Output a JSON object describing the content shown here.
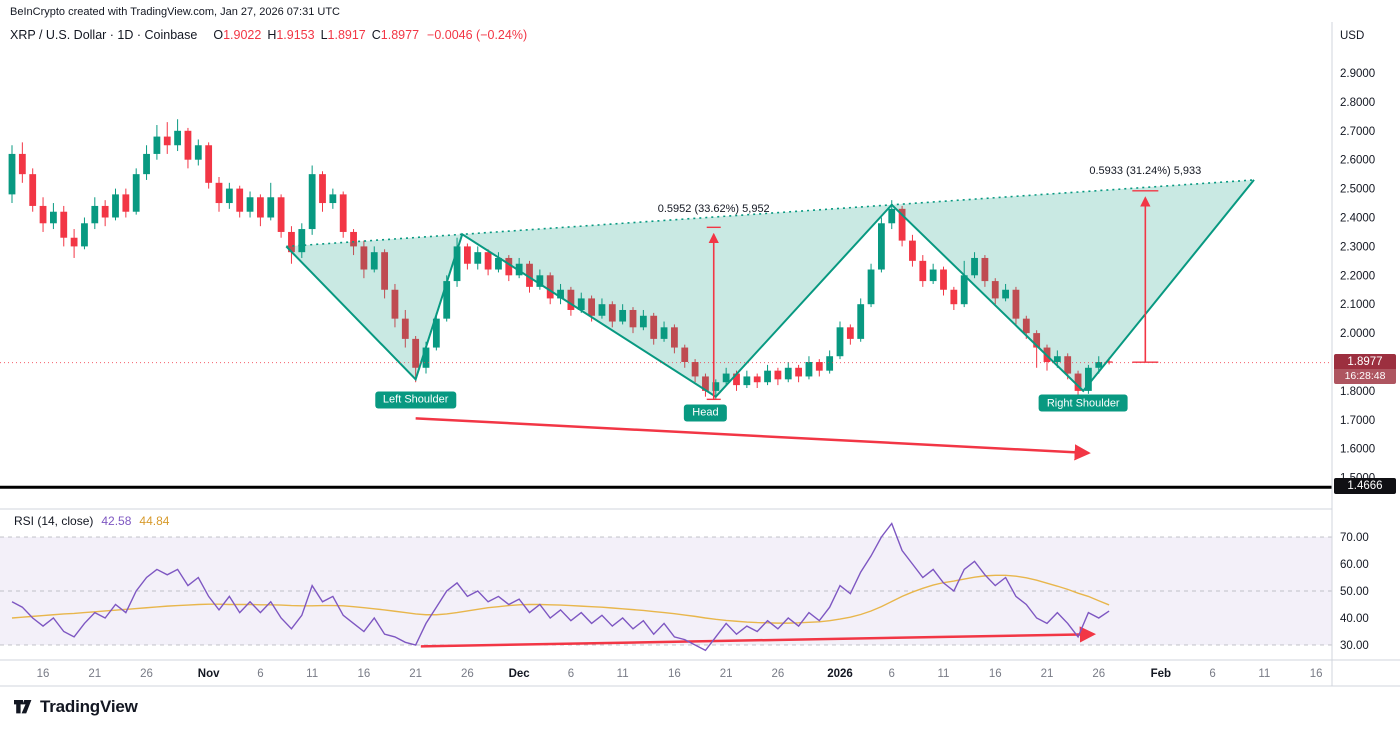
{
  "meta": {
    "attribution": "BeInCrypto created with TradingView.com, Jan 27, 2026 07:31 UTC",
    "currency": "USD"
  },
  "legend": {
    "symbol": "XRP / U.S. Dollar · 1D · Coinbase",
    "o_label": "O",
    "o_value": "1.9022",
    "h_label": "H",
    "h_value": "1.9153",
    "l_label": "L",
    "l_value": "1.8917",
    "c_label": "C",
    "c_value": "1.8977",
    "change": "−0.0046 (−0.24%)"
  },
  "rsi_legend": {
    "title": "RSI (14, close)",
    "value": "42.58",
    "ma_value": "44.84"
  },
  "price_badge": {
    "price": "1.8977",
    "countdown": "16:28:48"
  },
  "level_badge": {
    "price": "1.4666"
  },
  "footer": {
    "brand": "TradingView"
  },
  "axis": {
    "price_ticks": [
      {
        "label": "2.9000",
        "value": 2.9
      },
      {
        "label": "2.8000",
        "value": 2.8
      },
      {
        "label": "2.7000",
        "value": 2.7
      },
      {
        "label": "2.6000",
        "value": 2.6
      },
      {
        "label": "2.5000",
        "value": 2.5
      },
      {
        "label": "2.4000",
        "value": 2.4
      },
      {
        "label": "2.3000",
        "value": 2.3
      },
      {
        "label": "2.2000",
        "value": 2.2
      },
      {
        "label": "2.1000",
        "value": 2.1
      },
      {
        "label": "2.0000",
        "value": 2.0
      },
      {
        "label": "1.8000",
        "value": 1.8
      },
      {
        "label": "1.7000",
        "value": 1.7
      },
      {
        "label": "1.6000",
        "value": 1.6
      },
      {
        "label": "1.5000",
        "value": 1.5
      }
    ],
    "rsi_ticks": [
      {
        "label": "70.00",
        "value": 70
      },
      {
        "label": "60.00",
        "value": 60
      },
      {
        "label": "50.00",
        "value": 50
      },
      {
        "label": "40.00",
        "value": 40
      },
      {
        "label": "30.00",
        "value": 30
      }
    ],
    "time_ticks": [
      {
        "label": "16",
        "idx": 3
      },
      {
        "label": "21",
        "idx": 8
      },
      {
        "label": "26",
        "idx": 13
      },
      {
        "label": "Nov",
        "idx": 19,
        "major": true
      },
      {
        "label": "6",
        "idx": 24
      },
      {
        "label": "11",
        "idx": 29
      },
      {
        "label": "16",
        "idx": 34
      },
      {
        "label": "21",
        "idx": 39
      },
      {
        "label": "26",
        "idx": 44
      },
      {
        "label": "Dec",
        "idx": 49,
        "major": true
      },
      {
        "label": "6",
        "idx": 54
      },
      {
        "label": "11",
        "idx": 59
      },
      {
        "label": "16",
        "idx": 64
      },
      {
        "label": "21",
        "idx": 69
      },
      {
        "label": "26",
        "idx": 74
      },
      {
        "label": "2026",
        "idx": 80,
        "major": true,
        "bold": true
      },
      {
        "label": "6",
        "idx": 85
      },
      {
        "label": "11",
        "idx": 90
      },
      {
        "label": "16",
        "idx": 95
      },
      {
        "label": "21",
        "idx": 100
      },
      {
        "label": "26",
        "idx": 105
      },
      {
        "label": "Feb",
        "idx": 111,
        "major": true
      },
      {
        "label": "6",
        "idx": 116
      },
      {
        "label": "11",
        "idx": 121
      },
      {
        "label": "16",
        "idx": 126
      }
    ]
  },
  "colors": {
    "up": "#089981",
    "down": "#F23645",
    "pattern": "#089981",
    "pattern_fill": "rgba(8,153,129,0.22)",
    "rsi_line": "#7E57C2",
    "rsi_ma_line": "#E8B64C",
    "rsi_band": "rgba(126,87,194,0.09)",
    "dashed": "#9598A1",
    "arrow": "#F23645",
    "measure_gray": "rgba(131,136,148,0.35)",
    "measure_pink": "rgba(242,54,69,0.18)",
    "separator": "#D1D4DC",
    "text_primary": "#131722",
    "text_secondary": "#787B86",
    "support": "#000000"
  },
  "chart_data": {
    "type": "candlestick",
    "title": "XRP / U.S. Dollar · 1D · Coinbase",
    "price_axis_range": [
      1.4666,
      2.9
    ],
    "last_price": 1.8977,
    "support_line_price": 1.4666,
    "candles": [
      [
        2.48,
        2.65,
        2.45,
        2.62
      ],
      [
        2.62,
        2.66,
        2.52,
        2.55
      ],
      [
        2.55,
        2.57,
        2.42,
        2.44
      ],
      [
        2.44,
        2.47,
        2.35,
        2.38
      ],
      [
        2.38,
        2.45,
        2.36,
        2.42
      ],
      [
        2.42,
        2.44,
        2.3,
        2.33
      ],
      [
        2.33,
        2.36,
        2.26,
        2.3
      ],
      [
        2.3,
        2.4,
        2.29,
        2.38
      ],
      [
        2.38,
        2.47,
        2.36,
        2.44
      ],
      [
        2.44,
        2.46,
        2.37,
        2.4
      ],
      [
        2.4,
        2.5,
        2.39,
        2.48
      ],
      [
        2.48,
        2.5,
        2.4,
        2.42
      ],
      [
        2.42,
        2.57,
        2.41,
        2.55
      ],
      [
        2.55,
        2.65,
        2.53,
        2.62
      ],
      [
        2.62,
        2.72,
        2.6,
        2.68
      ],
      [
        2.68,
        2.73,
        2.62,
        2.65
      ],
      [
        2.65,
        2.74,
        2.63,
        2.7
      ],
      [
        2.7,
        2.71,
        2.57,
        2.6
      ],
      [
        2.6,
        2.67,
        2.58,
        2.65
      ],
      [
        2.65,
        2.66,
        2.5,
        2.52
      ],
      [
        2.52,
        2.54,
        2.42,
        2.45
      ],
      [
        2.45,
        2.52,
        2.43,
        2.5
      ],
      [
        2.5,
        2.51,
        2.4,
        2.42
      ],
      [
        2.42,
        2.49,
        2.4,
        2.47
      ],
      [
        2.47,
        2.48,
        2.37,
        2.4
      ],
      [
        2.4,
        2.52,
        2.39,
        2.47
      ],
      [
        2.47,
        2.48,
        2.33,
        2.35
      ],
      [
        2.35,
        2.37,
        2.24,
        2.28
      ],
      [
        2.28,
        2.38,
        2.26,
        2.36
      ],
      [
        2.36,
        2.58,
        2.34,
        2.55
      ],
      [
        2.55,
        2.56,
        2.42,
        2.45
      ],
      [
        2.45,
        2.5,
        2.43,
        2.48
      ],
      [
        2.48,
        2.49,
        2.33,
        2.35
      ],
      [
        2.35,
        2.36,
        2.27,
        2.3
      ],
      [
        2.3,
        2.32,
        2.19,
        2.22
      ],
      [
        2.22,
        2.3,
        2.21,
        2.28
      ],
      [
        2.28,
        2.29,
        2.12,
        2.15
      ],
      [
        2.15,
        2.17,
        2.02,
        2.05
      ],
      [
        2.05,
        2.08,
        1.95,
        1.98
      ],
      [
        1.98,
        1.99,
        1.83,
        1.88
      ],
      [
        1.88,
        1.97,
        1.86,
        1.95
      ],
      [
        1.95,
        2.07,
        1.94,
        2.05
      ],
      [
        2.05,
        2.2,
        2.04,
        2.18
      ],
      [
        2.18,
        2.33,
        2.16,
        2.3
      ],
      [
        2.3,
        2.31,
        2.22,
        2.24
      ],
      [
        2.24,
        2.3,
        2.22,
        2.28
      ],
      [
        2.28,
        2.29,
        2.2,
        2.22
      ],
      [
        2.22,
        2.28,
        2.21,
        2.26
      ],
      [
        2.26,
        2.27,
        2.18,
        2.2
      ],
      [
        2.2,
        2.26,
        2.19,
        2.24
      ],
      [
        2.24,
        2.25,
        2.14,
        2.16
      ],
      [
        2.16,
        2.22,
        2.15,
        2.2
      ],
      [
        2.2,
        2.21,
        2.1,
        2.12
      ],
      [
        2.12,
        2.17,
        2.1,
        2.15
      ],
      [
        2.15,
        2.16,
        2.06,
        2.08
      ],
      [
        2.08,
        2.14,
        2.07,
        2.12
      ],
      [
        2.12,
        2.13,
        2.04,
        2.06
      ],
      [
        2.06,
        2.12,
        2.05,
        2.1
      ],
      [
        2.1,
        2.11,
        2.02,
        2.04
      ],
      [
        2.04,
        2.1,
        2.03,
        2.08
      ],
      [
        2.08,
        2.09,
        2.0,
        2.02
      ],
      [
        2.02,
        2.08,
        2.01,
        2.06
      ],
      [
        2.06,
        2.07,
        1.96,
        1.98
      ],
      [
        1.98,
        2.04,
        1.97,
        2.02
      ],
      [
        2.02,
        2.03,
        1.93,
        1.95
      ],
      [
        1.95,
        1.96,
        1.88,
        1.9
      ],
      [
        1.9,
        1.91,
        1.83,
        1.85
      ],
      [
        1.85,
        1.86,
        1.78,
        1.8
      ],
      [
        1.8,
        1.84,
        1.77,
        1.83
      ],
      [
        1.83,
        1.88,
        1.82,
        1.86
      ],
      [
        1.86,
        1.87,
        1.8,
        1.82
      ],
      [
        1.82,
        1.87,
        1.81,
        1.85
      ],
      [
        1.85,
        1.86,
        1.81,
        1.83
      ],
      [
        1.83,
        1.89,
        1.82,
        1.87
      ],
      [
        1.87,
        1.88,
        1.82,
        1.84
      ],
      [
        1.84,
        1.9,
        1.83,
        1.88
      ],
      [
        1.88,
        1.89,
        1.83,
        1.85
      ],
      [
        1.85,
        1.92,
        1.84,
        1.9
      ],
      [
        1.9,
        1.91,
        1.85,
        1.87
      ],
      [
        1.87,
        1.94,
        1.86,
        1.92
      ],
      [
        1.92,
        2.04,
        1.91,
        2.02
      ],
      [
        2.02,
        2.03,
        1.96,
        1.98
      ],
      [
        1.98,
        2.12,
        1.97,
        2.1
      ],
      [
        2.1,
        2.24,
        2.09,
        2.22
      ],
      [
        2.22,
        2.4,
        2.21,
        2.38
      ],
      [
        2.38,
        2.46,
        2.36,
        2.43
      ],
      [
        2.43,
        2.44,
        2.3,
        2.32
      ],
      [
        2.32,
        2.34,
        2.23,
        2.25
      ],
      [
        2.25,
        2.27,
        2.16,
        2.18
      ],
      [
        2.18,
        2.24,
        2.17,
        2.22
      ],
      [
        2.22,
        2.23,
        2.13,
        2.15
      ],
      [
        2.15,
        2.16,
        2.08,
        2.1
      ],
      [
        2.1,
        2.25,
        2.09,
        2.2
      ],
      [
        2.2,
        2.28,
        2.19,
        2.26
      ],
      [
        2.26,
        2.27,
        2.16,
        2.18
      ],
      [
        2.18,
        2.19,
        2.1,
        2.12
      ],
      [
        2.12,
        2.17,
        2.11,
        2.15
      ],
      [
        2.15,
        2.16,
        2.03,
        2.05
      ],
      [
        2.05,
        2.06,
        1.98,
        2.0
      ],
      [
        2.0,
        2.01,
        1.88,
        1.95
      ],
      [
        1.95,
        1.96,
        1.87,
        1.9
      ],
      [
        1.9,
        1.94,
        1.88,
        1.92
      ],
      [
        1.92,
        1.93,
        1.84,
        1.86
      ],
      [
        1.86,
        1.87,
        1.77,
        1.8
      ],
      [
        1.8,
        1.89,
        1.79,
        1.88
      ],
      [
        1.88,
        1.92,
        1.86,
        1.9
      ],
      [
        1.9022,
        1.9153,
        1.8917,
        1.8977
      ]
    ],
    "rsi": {
      "length": 14,
      "source": "close",
      "current": 42.58,
      "ma_current": 44.84,
      "band": [
        30,
        70
      ],
      "levels": [
        70,
        50,
        30
      ],
      "values": [
        46,
        44,
        40,
        37,
        40,
        35,
        33,
        38,
        42,
        40,
        45,
        42,
        50,
        55,
        58,
        56,
        58,
        52,
        55,
        48,
        43,
        48,
        42,
        46,
        42,
        46,
        40,
        36,
        41,
        52,
        46,
        48,
        41,
        38,
        35,
        40,
        34,
        33,
        31,
        30,
        38,
        44,
        50,
        53,
        48,
        50,
        46,
        48,
        45,
        47,
        42,
        45,
        40,
        43,
        39,
        42,
        38,
        41,
        37,
        40,
        36,
        39,
        34,
        38,
        33,
        32,
        30,
        28,
        33,
        38,
        34,
        37,
        35,
        39,
        36,
        40,
        37,
        42,
        39,
        44,
        52,
        49,
        57,
        63,
        70,
        75,
        65,
        60,
        55,
        58,
        53,
        50,
        58,
        61,
        56,
        52,
        55,
        48,
        45,
        40,
        38,
        42,
        38,
        33,
        42,
        40,
        42.58
      ],
      "ma_values": [
        40.0,
        40.3,
        40.6,
        40.9,
        41.2,
        41.5,
        41.7,
        42.0,
        42.3,
        42.6,
        42.9,
        43.2,
        43.5,
        43.8,
        44.1,
        44.4,
        44.6,
        44.8,
        45.0,
        45.1,
        45.1,
        45.0,
        45.0,
        45.0,
        44.9,
        44.9,
        44.8,
        44.6,
        44.5,
        44.5,
        44.6,
        44.6,
        44.5,
        44.2,
        43.8,
        43.4,
        43.0,
        42.5,
        42.0,
        41.5,
        41.2,
        41.2,
        41.5,
        42.0,
        42.6,
        43.2,
        43.8,
        44.2,
        44.6,
        44.9,
        45.0,
        45.0,
        44.9,
        44.8,
        44.6,
        44.4,
        44.2,
        44.0,
        43.7,
        43.4,
        43.1,
        42.8,
        42.4,
        42.0,
        41.6,
        41.1,
        40.6,
        40.0,
        39.5,
        39.1,
        38.8,
        38.5,
        38.3,
        38.2,
        38.1,
        38.1,
        38.2,
        38.4,
        38.6,
        39.0,
        39.6,
        40.3,
        41.3,
        42.6,
        44.2,
        46.1,
        48.0,
        49.6,
        51.0,
        52.2,
        53.1,
        53.7,
        54.4,
        55.1,
        55.6,
        55.8,
        55.8,
        55.5,
        54.9,
        54.0,
        52.9,
        51.8,
        50.6,
        49.2,
        48.0,
        46.4,
        44.84
      ]
    },
    "pattern": {
      "name": "inverse-head-and-shoulders",
      "neckline": [
        [
          26.5,
          2.3
        ],
        [
          120,
          2.53
        ]
      ],
      "zigzag": [
        [
          26.5,
          2.3
        ],
        [
          39,
          1.84
        ],
        [
          43.5,
          2.342
        ],
        [
          68,
          1.78
        ],
        [
          85,
          2.444
        ],
        [
          103.5,
          1.8
        ],
        [
          120,
          2.53
        ]
      ],
      "labels": [
        {
          "text": "Left Shoulder",
          "idx": 39,
          "price": 1.77
        },
        {
          "text": "Head",
          "idx": 67,
          "price": 1.725
        },
        {
          "text": "Right Shoulder",
          "idx": 103.5,
          "price": 1.757
        }
      ]
    },
    "measurements": [
      {
        "label": "0.5952 (33.62%) 5,952",
        "idx": 67.8,
        "from": 1.7708,
        "to": 2.366,
        "label_price": 2.43,
        "band_width": 14,
        "segments": [
          {
            "from": 2.366,
            "to": 2.3,
            "color": "gray"
          },
          {
            "from": 2.3,
            "to": 1.7708,
            "color": "pink"
          }
        ]
      },
      {
        "label": "0.5933 (31.24%) 5,933",
        "idx": 109.5,
        "from": 1.8992,
        "to": 2.4925,
        "label_price": 2.56,
        "band_width": 26,
        "segments": [
          {
            "from": 2.4925,
            "to": 2.01,
            "color": "gray"
          },
          {
            "from": 2.01,
            "to": 1.8992,
            "color": "pink"
          }
        ]
      }
    ],
    "trend_arrows": {
      "price": {
        "from": [
          39,
          1.705
        ],
        "to": [
          104,
          1.585
        ]
      },
      "rsi": {
        "from": [
          39.5,
          29.5
        ],
        "to": [
          104.5,
          34
        ]
      }
    }
  }
}
